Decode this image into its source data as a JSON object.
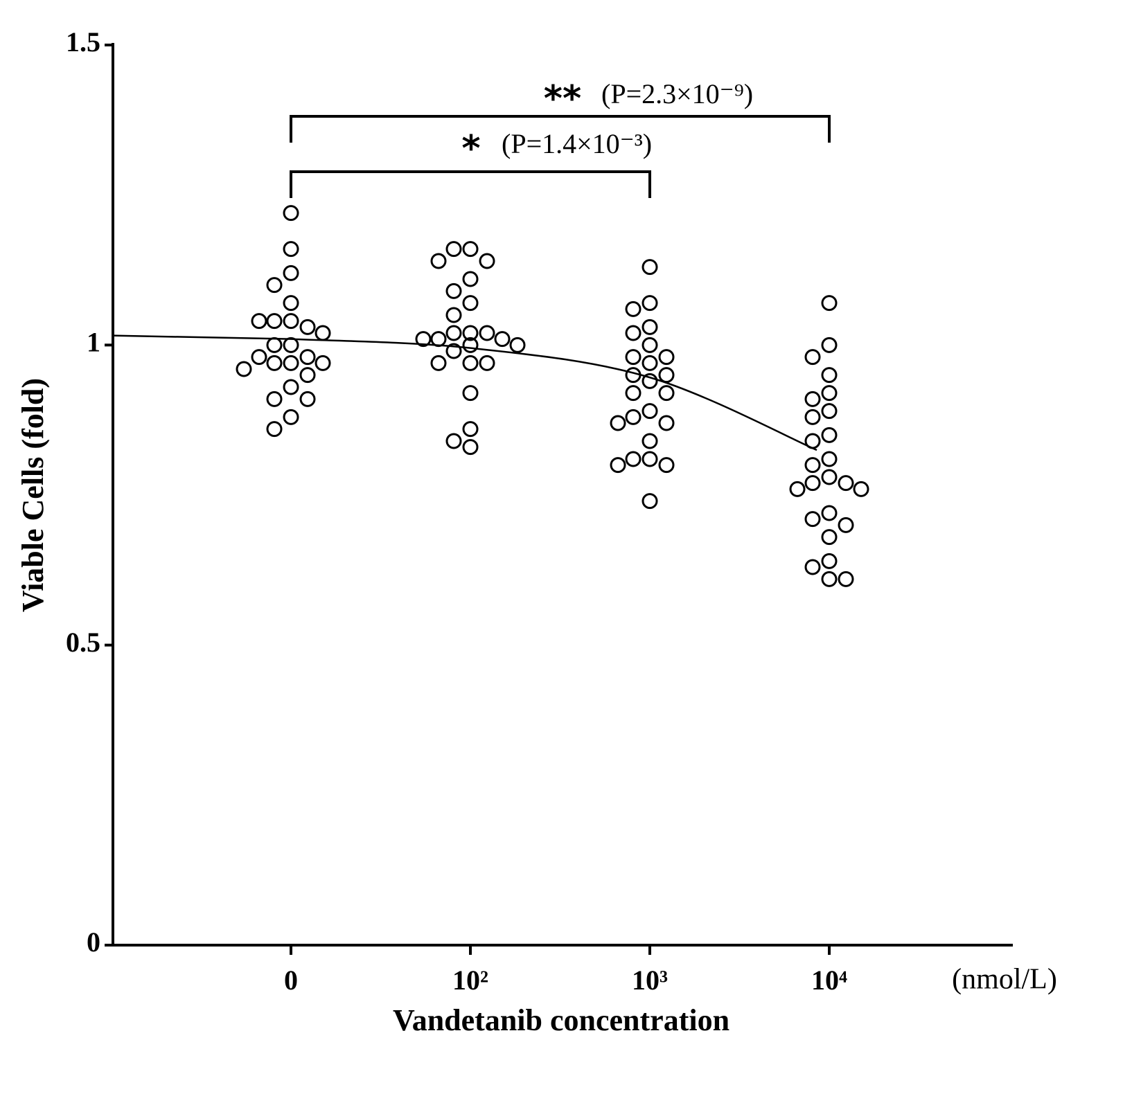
{
  "chart_data": {
    "type": "scatter",
    "x_label": "Vandetanib concentration",
    "x_unit": "(nmol/L)",
    "y_label": "Viable Cells (fold)",
    "categories": [
      "0",
      "10²",
      "10³",
      "10⁴"
    ],
    "ylim": [
      0,
      1.5
    ],
    "yticks": [
      0,
      0.5,
      1,
      1.5
    ],
    "marker_color": "#000000",
    "groups": [
      [
        1.22,
        1.16,
        1.12,
        1.1,
        1.07,
        1.04,
        1.04,
        1.03,
        1.04,
        1.02,
        1.0,
        1.0,
        0.98,
        0.98,
        0.97,
        0.97,
        0.97,
        0.96,
        0.95,
        0.93,
        0.91,
        0.91,
        0.88,
        0.86
      ],
      [
        1.16,
        1.16,
        1.14,
        1.14,
        1.11,
        1.09,
        1.07,
        1.05,
        1.02,
        1.02,
        1.02,
        1.01,
        1.01,
        1.01,
        1.0,
        1.0,
        0.99,
        0.97,
        0.97,
        0.97,
        0.92,
        0.86,
        0.84,
        0.83
      ],
      [
        1.13,
        1.07,
        1.06,
        1.03,
        1.02,
        1.0,
        0.98,
        0.98,
        0.97,
        0.95,
        0.95,
        0.94,
        0.92,
        0.92,
        0.89,
        0.88,
        0.87,
        0.87,
        0.84,
        0.81,
        0.81,
        0.8,
        0.8,
        0.74
      ],
      [
        1.07,
        1.0,
        0.98,
        0.95,
        0.92,
        0.91,
        0.89,
        0.88,
        0.85,
        0.84,
        0.81,
        0.8,
        0.78,
        0.77,
        0.77,
        0.76,
        0.76,
        0.72,
        0.71,
        0.7,
        0.68,
        0.64,
        0.63,
        0.61,
        0.61
      ]
    ],
    "fit": {
      "color": "#000000",
      "values": [
        1.01,
        0.995,
        0.946,
        0.825
      ]
    },
    "annotations": [
      {
        "stars": "**",
        "text": "(P=2.3×10⁻⁹)"
      },
      {
        "stars": "*",
        "text": "(P=1.4×10⁻³)"
      }
    ]
  }
}
